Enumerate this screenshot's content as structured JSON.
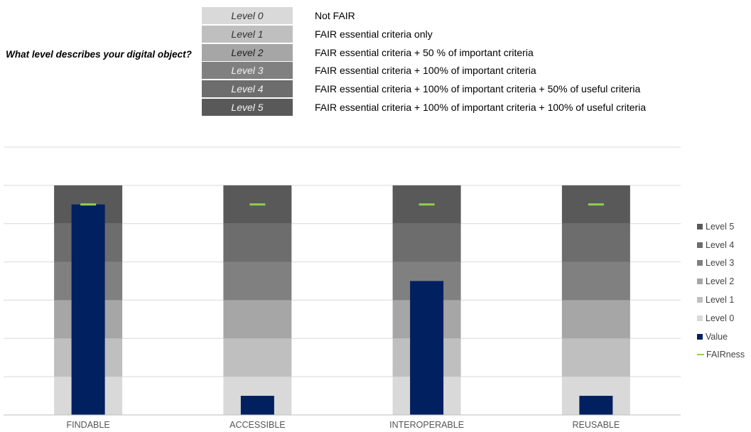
{
  "header": {
    "question": "What level describes your digital object?",
    "levels": [
      {
        "label": "Level 0",
        "desc": "Not FAIR",
        "bg": "#d9d9d9",
        "fg": "#333333"
      },
      {
        "label": "Level 1",
        "desc": "FAIR essential criteria only",
        "bg": "#bfbfbf",
        "fg": "#333333"
      },
      {
        "label": "Level 2",
        "desc": "FAIR essential criteria + 50 % of important criteria",
        "bg": "#a6a6a6",
        "fg": "#222222"
      },
      {
        "label": "Level 3",
        "desc": "FAIR essential criteria + 100% of important criteria",
        "bg": "#808080",
        "fg": "#f2f2f2"
      },
      {
        "label": "Level 4",
        "desc": "FAIR essential criteria + 100% of important criteria + 50% of useful criteria",
        "bg": "#6d6d6d",
        "fg": "#f2f2f2"
      },
      {
        "label": "Level 5",
        "desc": "FAIR essential criteria + 100% of important criteria + 100% of useful criteria",
        "bg": "#595959",
        "fg": "#f2f2f2"
      }
    ]
  },
  "chart_data": {
    "type": "bar",
    "stacked_background": true,
    "title": "",
    "xlabel": "",
    "ylabel": "",
    "ylim": [
      0,
      7
    ],
    "grid": true,
    "legend_position": "right",
    "categories": [
      "FINDABLE",
      "ACCESSIBLE",
      "INTEROPERABLE",
      "REUSABLE"
    ],
    "series": [
      {
        "name": "Level 0",
        "kind": "stack",
        "values": [
          1,
          1,
          1,
          1
        ],
        "color": "#d9d9d9"
      },
      {
        "name": "Level 1",
        "kind": "stack",
        "values": [
          1,
          1,
          1,
          1
        ],
        "color": "#bfbfbf"
      },
      {
        "name": "Level 2",
        "kind": "stack",
        "values": [
          1,
          1,
          1,
          1
        ],
        "color": "#a6a6a6"
      },
      {
        "name": "Level 3",
        "kind": "stack",
        "values": [
          1,
          1,
          1,
          1
        ],
        "color": "#808080"
      },
      {
        "name": "Level 4",
        "kind": "stack",
        "values": [
          1,
          1,
          1,
          1
        ],
        "color": "#6d6d6d"
      },
      {
        "name": "Level 5",
        "kind": "stack",
        "values": [
          1,
          1,
          1,
          1
        ],
        "color": "#595959"
      },
      {
        "name": "Value",
        "kind": "bar",
        "values": [
          5.5,
          0.5,
          3.5,
          0.5
        ],
        "color": "#002060"
      },
      {
        "name": "FAIRness",
        "kind": "marker",
        "values": [
          5.5,
          5.5,
          5.5,
          5.5
        ],
        "color": "#92d050"
      }
    ]
  }
}
